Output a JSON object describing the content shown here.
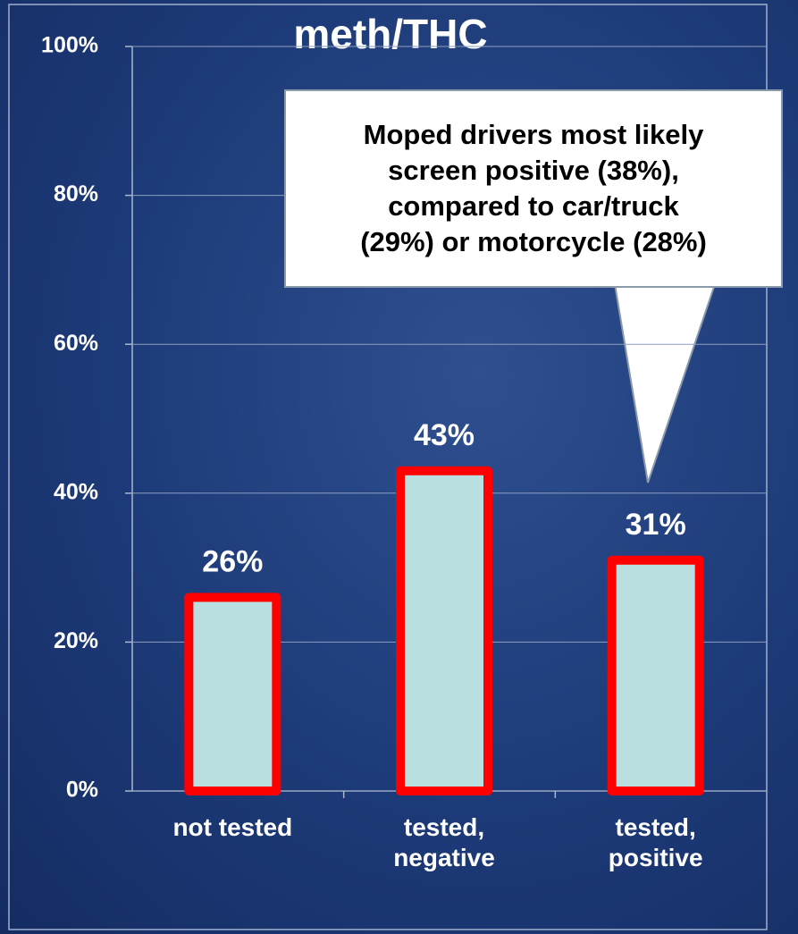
{
  "chart_data": {
    "type": "bar",
    "title": "meth/THC",
    "categories": [
      "not tested",
      "tested,\nnegative",
      "tested,\npositive"
    ],
    "values": [
      26,
      43,
      31
    ],
    "value_labels": [
      "26%",
      "43%",
      "31%"
    ],
    "color": "#b9dfe1",
    "edge_color": "#ff0000",
    "ylim": [
      0,
      100
    ],
    "yticks": [
      {
        "value": 0,
        "label": "0%"
      },
      {
        "value": 20,
        "label": "20%"
      },
      {
        "value": 40,
        "label": "40%"
      },
      {
        "value": 60,
        "label": "60%"
      },
      {
        "value": 80,
        "label": "80%"
      },
      {
        "value": 100,
        "label": "100%"
      }
    ],
    "grid": true,
    "annotation": "Moped drivers most likely\nscreen positive (38%),\ncompared to car/truck\n(29%) or motorcycle (28%)"
  }
}
